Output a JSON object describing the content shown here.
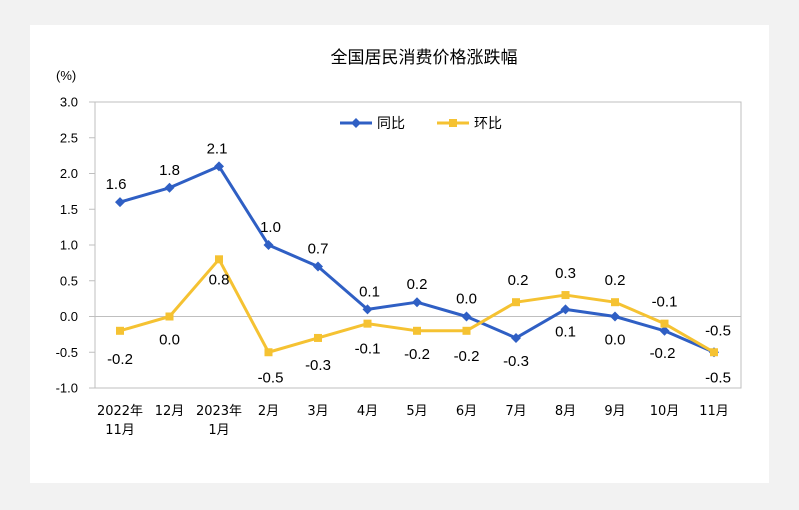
{
  "chart_data": {
    "type": "line",
    "title": "全国居民消费价格涨跌幅",
    "ylabel": "(%)",
    "ylim": [
      -1.0,
      3.0
    ],
    "yticks": [
      "3.0",
      "2.5",
      "2.0",
      "1.5",
      "1.0",
      "0.5",
      "0.0",
      "-0.5",
      "-1.0"
    ],
    "categories": [
      [
        "2022年",
        "11月"
      ],
      [
        "12月"
      ],
      [
        "2023年",
        "1月"
      ],
      [
        "2月"
      ],
      [
        "3月"
      ],
      [
        "4月"
      ],
      [
        "5月"
      ],
      [
        "6月"
      ],
      [
        "7月"
      ],
      [
        "8月"
      ],
      [
        "9月"
      ],
      [
        "10月"
      ],
      [
        "11月"
      ]
    ],
    "legend_position": "top-center",
    "series": [
      {
        "name": "同比",
        "color": "#2f5fc4",
        "marker": "diamond",
        "values": [
          1.6,
          1.8,
          2.1,
          1.0,
          0.7,
          0.1,
          0.2,
          0.0,
          -0.3,
          0.1,
          0.0,
          -0.2,
          -0.5
        ],
        "labels": [
          "1.6",
          "1.8",
          "2.1",
          "1.0",
          "0.7",
          "0.1",
          "0.2",
          "0.0",
          "-0.3",
          "0.1",
          "0.0",
          "-0.2",
          "-0.5"
        ]
      },
      {
        "name": "环比",
        "color": "#f5c232",
        "marker": "square",
        "values": [
          -0.2,
          0.0,
          0.8,
          -0.5,
          -0.3,
          -0.1,
          -0.2,
          -0.2,
          0.2,
          0.3,
          0.2,
          -0.1,
          -0.5
        ],
        "labels": [
          "-0.2",
          "0.0",
          "0.8",
          "-0.5",
          "-0.3",
          "-0.1",
          "-0.2",
          "-0.2",
          "0.2",
          "0.3",
          "0.2",
          "-0.1",
          "-0.5"
        ]
      }
    ]
  }
}
